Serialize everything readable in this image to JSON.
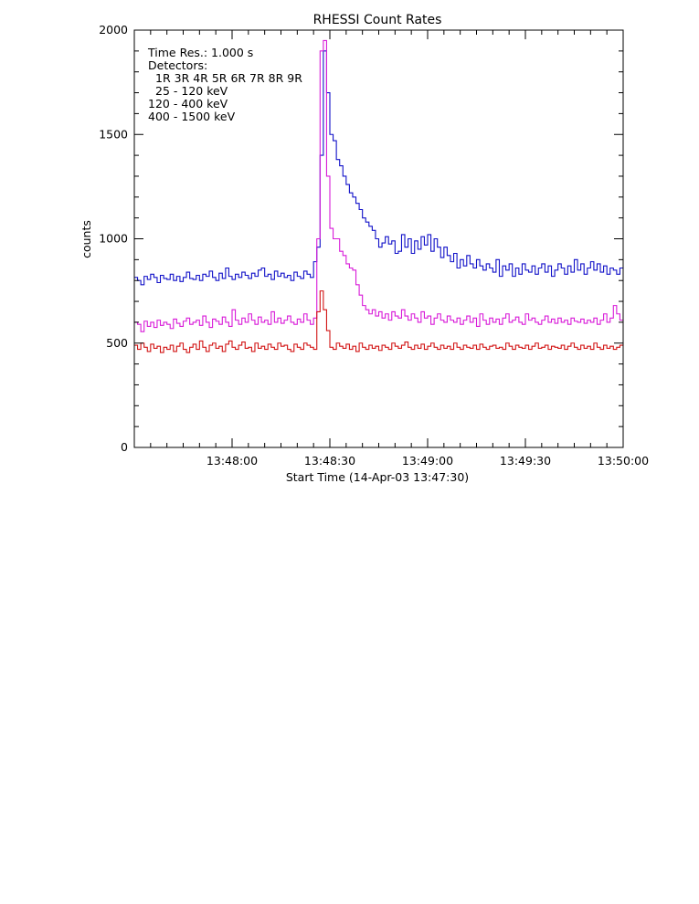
{
  "chart_data": {
    "type": "line",
    "title": "RHESSI Count Rates",
    "xlabel": "Start Time (14-Apr-03 13:47:30)",
    "ylabel": "counts",
    "x_unit": "seconds after 13:47:30",
    "xlim": [
      0,
      150
    ],
    "ylim": [
      0,
      2000
    ],
    "x_ticks": [
      {
        "value": 30,
        "label": "13:48:00"
      },
      {
        "value": 60,
        "label": "13:48:30"
      },
      {
        "value": 90,
        "label": "13:49:00"
      },
      {
        "value": 120,
        "label": "13:49:30"
      },
      {
        "value": 150,
        "label": "13:50:00"
      }
    ],
    "y_ticks": [
      {
        "value": 0,
        "label": "0"
      },
      {
        "value": 500,
        "label": "500"
      },
      {
        "value": 1000,
        "label": "1000"
      },
      {
        "value": 1500,
        "label": "1500"
      },
      {
        "value": 2000,
        "label": "2000"
      }
    ],
    "legend": {
      "position": "top-left",
      "time_res": "Time Res.: 1.000 s",
      "detectors_label": "Detectors:",
      "detectors": "1R 3R 4R 5R 6R 7R 8R 9R"
    },
    "series": [
      {
        "name": "25 - 120 keV",
        "color": "#1010c8",
        "values": [
          815,
          800,
          780,
          820,
          805,
          830,
          815,
          790,
          825,
          810,
          805,
          830,
          800,
          820,
          795,
          815,
          840,
          810,
          805,
          825,
          800,
          830,
          820,
          845,
          815,
          800,
          835,
          810,
          860,
          820,
          805,
          830,
          815,
          840,
          825,
          810,
          835,
          820,
          850,
          860,
          820,
          830,
          805,
          845,
          820,
          835,
          815,
          825,
          800,
          840,
          820,
          810,
          845,
          830,
          815,
          890,
          960,
          1400,
          1900,
          1700,
          1500,
          1470,
          1380,
          1350,
          1300,
          1260,
          1220,
          1200,
          1170,
          1140,
          1100,
          1080,
          1060,
          1040,
          1000,
          960,
          980,
          1010,
          975,
          990,
          930,
          940,
          1020,
          960,
          1000,
          930,
          990,
          950,
          1010,
          970,
          1020,
          940,
          1000,
          960,
          910,
          960,
          920,
          890,
          930,
          860,
          900,
          870,
          920,
          880,
          860,
          900,
          870,
          850,
          880,
          860,
          840,
          900,
          820,
          870,
          850,
          880,
          820,
          860,
          830,
          880,
          850,
          840,
          870,
          830,
          860,
          880,
          840,
          870,
          820,
          850,
          880,
          860,
          830,
          870,
          840,
          900,
          850,
          880,
          830,
          860,
          890,
          850,
          880,
          840,
          870,
          830,
          860,
          850,
          830,
          860
        ]
      },
      {
        "name": "120 - 400 keV",
        "color": "#d81ad8",
        "values": [
          600,
          590,
          555,
          605,
          580,
          600,
          575,
          610,
          585,
          600,
          590,
          570,
          615,
          595,
          580,
          605,
          620,
          590,
          600,
          610,
          585,
          630,
          600,
          575,
          615,
          605,
          590,
          625,
          600,
          580,
          660,
          610,
          590,
          620,
          600,
          640,
          610,
          590,
          625,
          600,
          610,
          590,
          650,
          600,
          620,
          595,
          610,
          630,
          600,
          590,
          615,
          600,
          640,
          610,
          590,
          620,
          1000,
          1900,
          1950,
          1300,
          1050,
          1000,
          1000,
          940,
          920,
          880,
          860,
          850,
          780,
          730,
          680,
          660,
          640,
          660,
          630,
          650,
          620,
          640,
          610,
          650,
          630,
          620,
          660,
          630,
          610,
          640,
          620,
          600,
          650,
          620,
          630,
          590,
          620,
          640,
          610,
          600,
          630,
          610,
          600,
          620,
          590,
          610,
          630,
          600,
          620,
          580,
          640,
          610,
          590,
          620,
          600,
          615,
          590,
          620,
          640,
          600,
          610,
          625,
          600,
          590,
          640,
          610,
          620,
          600,
          590,
          610,
          630,
          600,
          615,
          595,
          620,
          600,
          610,
          590,
          620,
          605,
          600,
          615,
          595,
          610,
          600,
          620,
          590,
          610,
          640,
          600,
          620,
          680,
          640,
          610
        ]
      },
      {
        "name": "400 - 1500 keV",
        "color": "#d21414",
        "values": [
          490,
          470,
          500,
          480,
          460,
          495,
          475,
          485,
          455,
          480,
          470,
          490,
          460,
          485,
          500,
          470,
          455,
          480,
          495,
          470,
          510,
          480,
          460,
          490,
          500,
          475,
          485,
          460,
          495,
          510,
          480,
          470,
          490,
          505,
          475,
          480,
          460,
          500,
          475,
          485,
          470,
          495,
          480,
          470,
          500,
          485,
          490,
          470,
          460,
          495,
          480,
          470,
          500,
          490,
          480,
          470,
          650,
          750,
          660,
          560,
          480,
          470,
          500,
          485,
          475,
          495,
          470,
          485,
          460,
          500,
          480,
          470,
          490,
          475,
          485,
          465,
          490,
          480,
          470,
          500,
          485,
          475,
          490,
          505,
          480,
          470,
          490,
          475,
          495,
          470,
          485,
          500,
          480,
          470,
          490,
          475,
          485,
          470,
          500,
          480,
          470,
          490,
          480,
          475,
          490,
          470,
          495,
          480,
          470,
          485,
          490,
          475,
          480,
          470,
          500,
          485,
          470,
          490,
          480,
          475,
          490,
          470,
          485,
          500,
          475,
          480,
          490,
          470,
          485,
          480,
          475,
          490,
          470,
          485,
          500,
          480,
          470,
          490,
          475,
          485,
          470,
          500,
          480,
          470,
          490,
          475,
          485,
          470,
          480,
          490
        ]
      }
    ]
  }
}
